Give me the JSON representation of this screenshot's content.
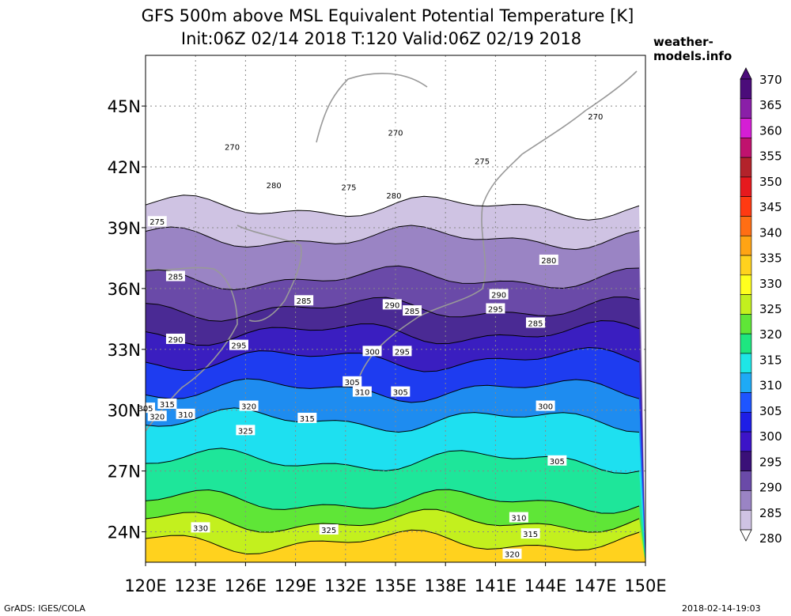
{
  "title_line1": "GFS 500m above MSL Equivalent Potential Temperature [K]",
  "title_line2": "Init:06Z 02/14 2018 T:120 Valid:06Z 02/19 2018",
  "site": "weather-models.info",
  "footer_left": "GrADS: IGES/COLA",
  "footer_right": "2018-02-14-19:03",
  "map": {
    "lon_range": [
      120,
      150
    ],
    "lat_range": [
      22.5,
      47.5
    ],
    "lon_ticks": [
      {
        "value": 120,
        "label": "120E"
      },
      {
        "value": 123,
        "label": "123E"
      },
      {
        "value": 126,
        "label": "126E"
      },
      {
        "value": 129,
        "label": "129E"
      },
      {
        "value": 132,
        "label": "132E"
      },
      {
        "value": 135,
        "label": "135E"
      },
      {
        "value": 138,
        "label": "138E"
      },
      {
        "value": 141,
        "label": "141E"
      },
      {
        "value": 144,
        "label": "144E"
      },
      {
        "value": 147,
        "label": "147E"
      },
      {
        "value": 150,
        "label": "150E"
      }
    ],
    "lat_ticks": [
      {
        "value": 24,
        "label": "24N"
      },
      {
        "value": 27,
        "label": "27N"
      },
      {
        "value": 30,
        "label": "30N"
      },
      {
        "value": 33,
        "label": "33N"
      },
      {
        "value": 36,
        "label": "36N"
      },
      {
        "value": 39,
        "label": "39N"
      },
      {
        "value": 42,
        "label": "42N"
      },
      {
        "value": 45,
        "label": "45N"
      }
    ],
    "gridlines": "dotted"
  },
  "colorbar": {
    "levels": [
      {
        "label": "370",
        "color": "#4b0c7a"
      },
      {
        "label": "365",
        "color": "#8a1fa8"
      },
      {
        "label": "360",
        "color": "#d51ed5"
      },
      {
        "label": "355",
        "color": "#c0126e"
      },
      {
        "label": "350",
        "color": "#b3232b"
      },
      {
        "label": "345",
        "color": "#e6191e"
      },
      {
        "label": "340",
        "color": "#ff3a12"
      },
      {
        "label": "335",
        "color": "#ff6e14"
      },
      {
        "label": "330",
        "color": "#ffa414"
      },
      {
        "label": "325",
        "color": "#ffd21e"
      },
      {
        "label": "320",
        "color": "#ffff1e"
      },
      {
        "label": "315",
        "color": "#c3f01e"
      },
      {
        "label": "310",
        "color": "#5fe637"
      },
      {
        "label": "305",
        "color": "#1ee680"
      },
      {
        "label": "300",
        "color": "#1ee6e6"
      },
      {
        "label": "295",
        "color": "#1eaaf5"
      },
      {
        "label": "290",
        "color": "#1e55ff"
      },
      {
        "label": "285",
        "color": "#1e1ee6"
      },
      {
        "label": "280",
        "color": "#3c14c8"
      }
    ],
    "upper_fill": [
      "#4b0c7a",
      "#8a1fa8",
      "#d51ed5",
      "#c0126e",
      "#b3232b",
      "#e6191e",
      "#ff3a12",
      "#ff6e14",
      "#ffa414",
      "#ffd21e",
      "#ffff1e",
      "#c3f01e",
      "#5fe637",
      "#1ee680",
      "#1ee6e6",
      "#1eaaf5",
      "#1e55ff",
      "#1e1ee6",
      "#3c14c8",
      "#3a1078",
      "#6a4aa8",
      "#9a84c4",
      "#cfc3e3"
    ]
  },
  "field_bands": [
    {
      "lat": 47.5,
      "level": "275",
      "color": "#ffffff"
    },
    {
      "lat": 40.0,
      "level": "280",
      "color": "#cfc3e3"
    },
    {
      "lat": 38.5,
      "level": "285",
      "color": "#9a84c4"
    },
    {
      "lat": 36.5,
      "level": "285",
      "color": "#6a4aa8"
    },
    {
      "lat": 35.0,
      "level": "290",
      "color": "#4a2a94"
    },
    {
      "lat": 33.8,
      "level": "295",
      "color": "#3a1ec0"
    },
    {
      "lat": 32.5,
      "level": "300",
      "color": "#1e3cf0"
    },
    {
      "lat": 31.0,
      "level": "305",
      "color": "#1e8cf0"
    },
    {
      "lat": 29.5,
      "level": "310",
      "color": "#1ee0f0"
    },
    {
      "lat": 27.5,
      "level": "315",
      "color": "#1ee69a"
    },
    {
      "lat": 25.5,
      "level": "320",
      "color": "#5fe637"
    },
    {
      "lat": 24.5,
      "level": "325",
      "color": "#c3f01e"
    },
    {
      "lat": 23.5,
      "level": "330",
      "color": "#ffd21e"
    }
  ],
  "contour_labels": [
    {
      "text": "270",
      "lon": 125.2,
      "lat": 43.0
    },
    {
      "text": "270",
      "lon": 135.0,
      "lat": 43.7
    },
    {
      "text": "270",
      "lon": 147.0,
      "lat": 44.5
    },
    {
      "text": "275",
      "lon": 132.2,
      "lat": 41.0
    },
    {
      "text": "275",
      "lon": 140.2,
      "lat": 42.3
    },
    {
      "text": "275",
      "lon": 120.7,
      "lat": 39.3
    },
    {
      "text": "280",
      "lon": 127.7,
      "lat": 41.1
    },
    {
      "text": "280",
      "lon": 134.9,
      "lat": 40.6
    },
    {
      "text": "280",
      "lon": 144.2,
      "lat": 37.4
    },
    {
      "text": "285",
      "lon": 121.8,
      "lat": 36.6
    },
    {
      "text": "285",
      "lon": 129.5,
      "lat": 35.4
    },
    {
      "text": "285",
      "lon": 136.0,
      "lat": 34.9
    },
    {
      "text": "285",
      "lon": 143.4,
      "lat": 34.3
    },
    {
      "text": "290",
      "lon": 121.8,
      "lat": 33.5
    },
    {
      "text": "290",
      "lon": 134.8,
      "lat": 35.2
    },
    {
      "text": "290",
      "lon": 141.2,
      "lat": 35.7
    },
    {
      "text": "295",
      "lon": 125.6,
      "lat": 33.2
    },
    {
      "text": "295",
      "lon": 135.4,
      "lat": 32.9
    },
    {
      "text": "295",
      "lon": 141.0,
      "lat": 35.0
    },
    {
      "text": "300",
      "lon": 133.6,
      "lat": 32.9
    },
    {
      "text": "300",
      "lon": 144.0,
      "lat": 30.2
    },
    {
      "text": "305",
      "lon": 132.4,
      "lat": 31.4
    },
    {
      "text": "305",
      "lon": 135.3,
      "lat": 30.9
    },
    {
      "text": "305",
      "lon": 144.7,
      "lat": 27.5
    },
    {
      "text": "310",
      "lon": 133.0,
      "lat": 30.9
    },
    {
      "text": "310",
      "lon": 122.4,
      "lat": 29.8
    },
    {
      "text": "310",
      "lon": 142.4,
      "lat": 24.7
    },
    {
      "text": "315",
      "lon": 129.7,
      "lat": 29.6
    },
    {
      "text": "315",
      "lon": 121.3,
      "lat": 30.3
    },
    {
      "text": "315",
      "lon": 143.1,
      "lat": 23.9
    },
    {
      "text": "320",
      "lon": 120.7,
      "lat": 29.7
    },
    {
      "text": "320",
      "lon": 126.2,
      "lat": 30.2
    },
    {
      "text": "320",
      "lon": 142.0,
      "lat": 22.9
    },
    {
      "text": "325",
      "lon": 126.0,
      "lat": 29.0
    },
    {
      "text": "325",
      "lon": 131.0,
      "lat": 24.1
    },
    {
      "text": "330",
      "lon": 123.3,
      "lat": 24.2
    },
    {
      "text": "305",
      "lon": 120.0,
      "lat": 30.1
    }
  ]
}
